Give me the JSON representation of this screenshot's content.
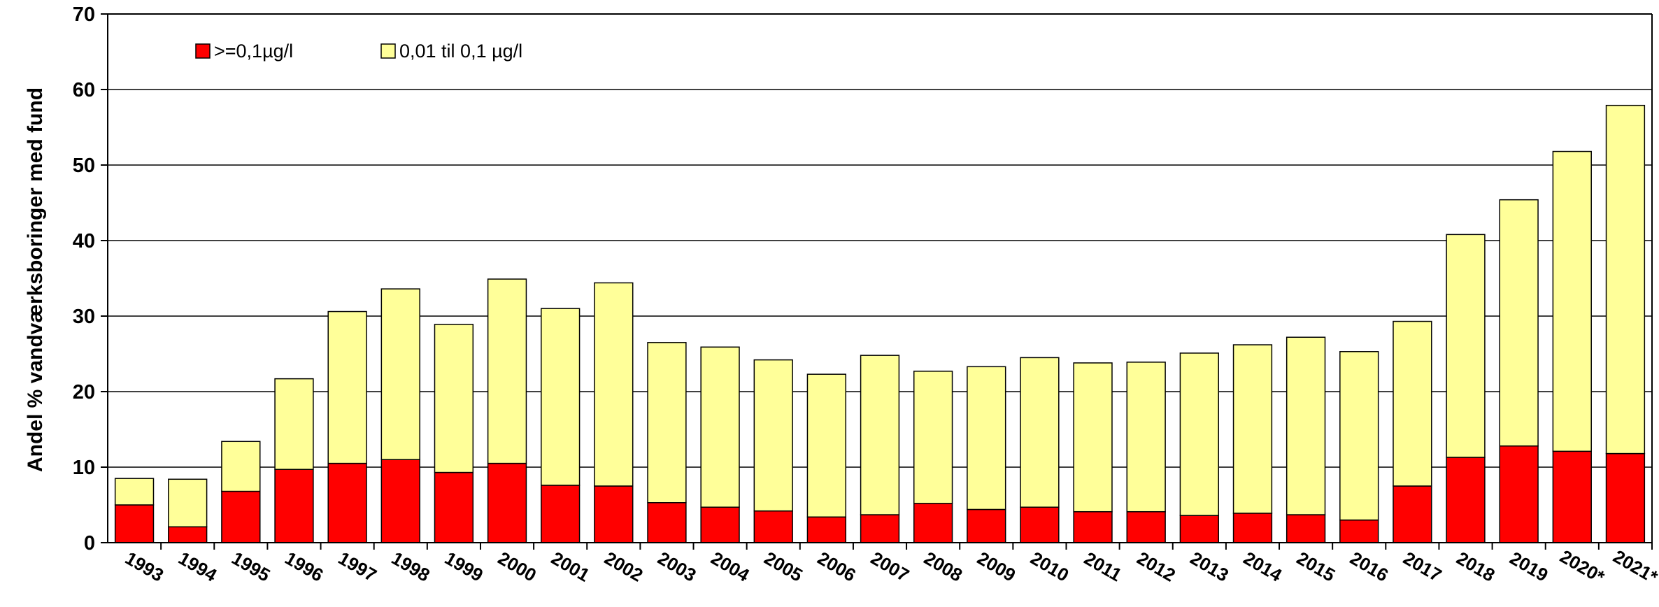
{
  "chart_data": {
    "type": "bar",
    "stacked": true,
    "title": "",
    "xlabel": "",
    "ylabel": "Andel % vandværksboringer med fund",
    "ylim": [
      0,
      70
    ],
    "yticks": [
      0,
      10,
      20,
      30,
      40,
      50,
      60,
      70
    ],
    "grid": true,
    "legend_position": "top-left",
    "categories": [
      "1993",
      "1994",
      "1995",
      "1996",
      "1997",
      "1998",
      "1999",
      "2000",
      "2001",
      "2002",
      "2003",
      "2004",
      "2005",
      "2006",
      "2007",
      "2008",
      "2009",
      "2010",
      "2011",
      "2012",
      "2013",
      "2014",
      "2015",
      "2016",
      "2017",
      "2018",
      "2019",
      "2020*",
      "2021*"
    ],
    "series": [
      {
        "name": ">=0,1µg/l",
        "color": "#ff0000",
        "values": [
          5.0,
          2.1,
          6.8,
          9.7,
          10.5,
          11.0,
          9.3,
          10.5,
          7.6,
          7.5,
          5.3,
          4.7,
          4.2,
          3.4,
          3.7,
          5.2,
          4.4,
          4.7,
          4.1,
          4.1,
          3.6,
          3.9,
          3.7,
          3.0,
          7.5,
          11.3,
          12.8,
          12.1,
          11.8
        ]
      },
      {
        "name": "0,01 til 0,1 µg/l",
        "color": "#ffff99",
        "values": [
          3.5,
          6.3,
          6.6,
          12.0,
          20.1,
          22.6,
          19.6,
          24.4,
          23.4,
          26.9,
          21.2,
          21.2,
          20.0,
          18.9,
          21.1,
          17.5,
          18.9,
          19.8,
          19.7,
          19.8,
          21.5,
          22.3,
          23.5,
          22.3,
          21.8,
          29.5,
          32.6,
          39.7,
          46.1
        ]
      }
    ]
  }
}
